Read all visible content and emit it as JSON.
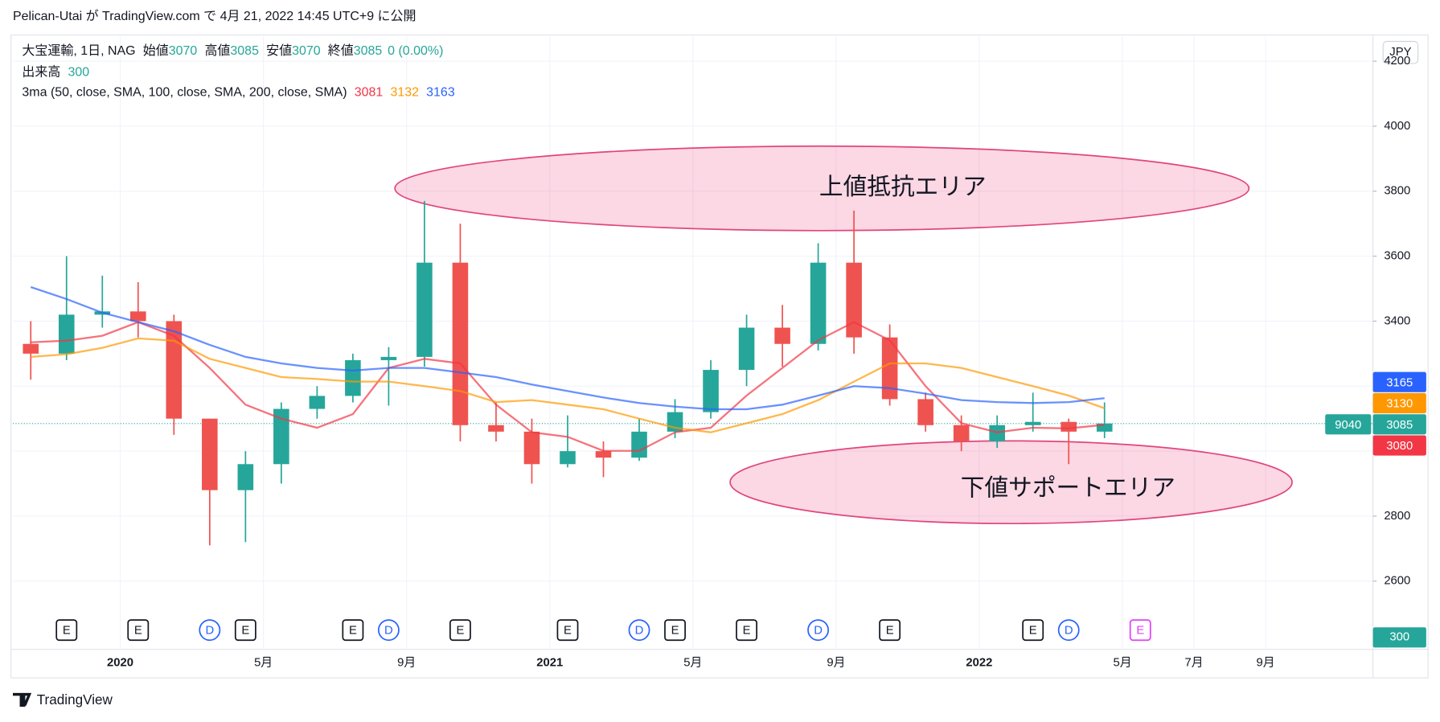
{
  "caption": "Pelican-Utai が TradingView.com で 4月 21, 2022 14:45 UTC+9 に公開",
  "footer": "TradingView",
  "chart_data": {
    "type": "candlestick",
    "symbol": "大宝運輸, 1日, NAG",
    "ohlc_legend": [
      {
        "label": "始値",
        "value": 3070
      },
      {
        "label": "高値",
        "value": 3085
      },
      {
        "label": "安値",
        "value": 3070
      },
      {
        "label": "終値",
        "value": 3085
      }
    ],
    "change": "0 (0.00%)",
    "volume": {
      "label": "出来高",
      "value": 300
    },
    "indicator": "3ma (50, close, SMA, 100, close, SMA, 200, close, SMA)",
    "currency": "JPY",
    "up_color": "#26a69a",
    "down_color": "#ef5350",
    "x": [
      "2019-10",
      "2019-11",
      "2019-12",
      "2020-01",
      "2020-02",
      "2020-03",
      "2020-04",
      "2020-05",
      "2020-06",
      "2020-07",
      "2020-08",
      "2020-09",
      "2020-10",
      "2020-11",
      "2020-12",
      "2021-01",
      "2021-02",
      "2021-03",
      "2021-04",
      "2021-05",
      "2021-06",
      "2021-07",
      "2021-08",
      "2021-09",
      "2021-10",
      "2021-11",
      "2021-12",
      "2022-01",
      "2022-02",
      "2022-03",
      "2022-04"
    ],
    "open": [
      3330,
      3300,
      3420,
      3430,
      3400,
      3100,
      2880,
      2960,
      3130,
      3170,
      3280,
      3290,
      3580,
      3080,
      3060,
      2960,
      3000,
      2980,
      3060,
      3120,
      3250,
      3380,
      3330,
      3580,
      3350,
      3160,
      3080,
      3030,
      3080,
      3090,
      3060
    ],
    "high": [
      3400,
      3600,
      3540,
      3520,
      3420,
      3100,
      3000,
      3150,
      3200,
      3300,
      3320,
      3770,
      3700,
      3150,
      3100,
      3110,
      3030,
      3100,
      3160,
      3280,
      3420,
      3450,
      3640,
      3740,
      3390,
      3180,
      3110,
      3110,
      3180,
      3100,
      3150
    ],
    "low": [
      3220,
      3280,
      3380,
      3350,
      3050,
      2710,
      2720,
      2900,
      3100,
      3150,
      3140,
      3260,
      3030,
      3030,
      2900,
      2950,
      2920,
      2970,
      3040,
      3100,
      3200,
      3260,
      3310,
      3300,
      3140,
      3060,
      3000,
      3010,
      3060,
      2960,
      3040
    ],
    "close": [
      3300,
      3420,
      3430,
      3400,
      3100,
      2880,
      2960,
      3130,
      3170,
      3280,
      3290,
      3580,
      3080,
      3060,
      2960,
      3000,
      2980,
      3060,
      3120,
      3250,
      3380,
      3330,
      3580,
      3350,
      3160,
      3080,
      3030,
      3080,
      3090,
      3060,
      3085
    ],
    "series": [
      {
        "color": "#f23645",
        "last": 3081,
        "values": [
          3335,
          3340,
          3355,
          3397,
          3355,
          3256,
          3143,
          3100,
          3072,
          3114,
          3256,
          3284,
          3270,
          3143,
          3058,
          3044,
          3001,
          3001,
          3058,
          3072,
          3171,
          3256,
          3341,
          3397,
          3341,
          3200,
          3086,
          3058,
          3072,
          3070,
          3081
        ]
      },
      {
        "color": "#ff9800",
        "last": 3132,
        "values": [
          3290,
          3298,
          3318,
          3347,
          3340,
          3284,
          3256,
          3228,
          3222,
          3214,
          3214,
          3200,
          3185,
          3151,
          3157,
          3143,
          3129,
          3100,
          3072,
          3058,
          3086,
          3114,
          3157,
          3214,
          3270,
          3270,
          3256,
          3228,
          3200,
          3171,
          3132
        ]
      },
      {
        "color": "#2962ff",
        "last": 3163,
        "values": [
          3505,
          3468,
          3426,
          3397,
          3369,
          3327,
          3290,
          3270,
          3256,
          3248,
          3256,
          3256,
          3242,
          3228,
          3205,
          3185,
          3165,
          3148,
          3137,
          3129,
          3129,
          3143,
          3171,
          3200,
          3194,
          3177,
          3157,
          3151,
          3148,
          3151,
          3163
        ]
      }
    ],
    "price_labels": [
      {
        "value": 3165,
        "color": "#2962ff"
      },
      {
        "value": 3130,
        "color": "#ff9800"
      },
      {
        "value": 3085,
        "color": "#26a69a"
      },
      {
        "value": 3080,
        "color": "#f23645"
      }
    ],
    "countdown": "9040",
    "ylim": [
      2390,
      4275
    ],
    "yticks": [
      2600,
      2800,
      3000,
      3200,
      3400,
      3600,
      3800,
      4000,
      4200
    ],
    "xlim": [
      "2019-10",
      "2022-12"
    ],
    "xticks": [
      {
        "value": "2020-01",
        "label": "2020"
      },
      {
        "value": "2020-05",
        "label": "5月"
      },
      {
        "value": "2020-09",
        "label": "9月"
      },
      {
        "value": "2021-01",
        "label": "2021"
      },
      {
        "value": "2021-05",
        "label": "5月"
      },
      {
        "value": "2021-09",
        "label": "9月"
      },
      {
        "value": "2022-01",
        "label": "2022"
      },
      {
        "value": "2022-05",
        "label": "5月"
      },
      {
        "value": "2022-07",
        "label": "7月"
      },
      {
        "value": "2022-09",
        "label": "9月"
      }
    ],
    "grid": true,
    "events": [
      {
        "x": "2019-11",
        "label": "E"
      },
      {
        "x": "2020-01",
        "label": "E"
      },
      {
        "x": "2020-03",
        "label": "D"
      },
      {
        "x": "2020-04",
        "label": "E"
      },
      {
        "x": "2020-07",
        "label": "E"
      },
      {
        "x": "2020-08",
        "label": "D"
      },
      {
        "x": "2020-10",
        "label": "E"
      },
      {
        "x": "2021-01",
        "label": "E"
      },
      {
        "x": "2021-03",
        "label": "D"
      },
      {
        "x": "2021-04",
        "label": "E"
      },
      {
        "x": "2021-06",
        "label": "E"
      },
      {
        "x": "2021-08",
        "label": "D"
      },
      {
        "x": "2021-10",
        "label": "E"
      },
      {
        "x": "2022-02",
        "label": "E"
      },
      {
        "x": "2022-03",
        "label": "D"
      },
      {
        "x": "2022-05",
        "label": "E"
      }
    ],
    "annotations": [
      "上値抵抗エリア",
      "下値サポートエリア"
    ]
  }
}
